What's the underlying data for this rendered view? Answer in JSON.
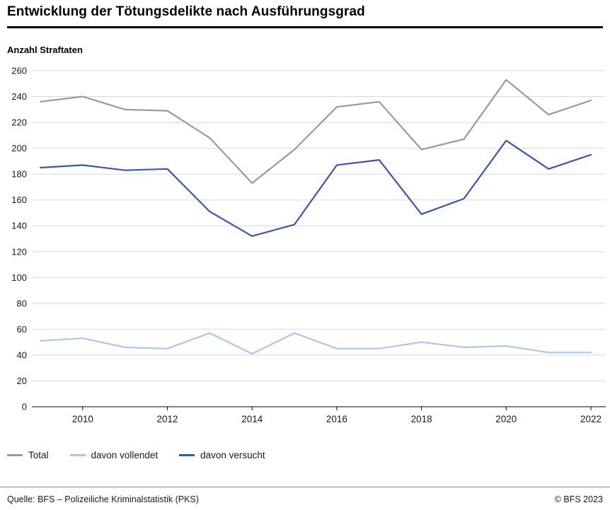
{
  "header": {
    "title": "Entwicklung der Tötungsdelikte nach Ausführungsgrad"
  },
  "chart_data": {
    "type": "line",
    "title": "Entwicklung der Tötungsdelikte nach Ausführungsgrad",
    "ylabel": "Anzahl Straftaten",
    "xlabel": "",
    "x": [
      2009,
      2010,
      2011,
      2012,
      2013,
      2014,
      2015,
      2016,
      2017,
      2018,
      2019,
      2020,
      2021,
      2022
    ],
    "x_tick_labels": [
      "2010",
      "2012",
      "2014",
      "2016",
      "2018",
      "2020",
      "2022"
    ],
    "ylim": [
      0,
      260
    ],
    "ytick_step": 20,
    "grid": true,
    "legend_position": "bottom",
    "series": [
      {
        "name": "Total",
        "color": "#9a9a9a",
        "values": [
          236,
          240,
          230,
          229,
          208,
          173,
          199,
          232,
          236,
          199,
          207,
          253,
          226,
          237
        ]
      },
      {
        "name": "davon vollendet",
        "color": "#aec6e8",
        "values": [
          51,
          53,
          46,
          45,
          57,
          41,
          57,
          45,
          45,
          50,
          46,
          47,
          42,
          42
        ]
      },
      {
        "name": "davon versucht",
        "color": "#3c57a6",
        "values": [
          185,
          187,
          183,
          184,
          151,
          132,
          141,
          187,
          191,
          149,
          161,
          206,
          184,
          195
        ]
      }
    ]
  },
  "footer": {
    "source": "Quelle: BFS – Polizeiliche Kriminalstatistik (PKS)",
    "copyright": "© BFS 2023"
  }
}
